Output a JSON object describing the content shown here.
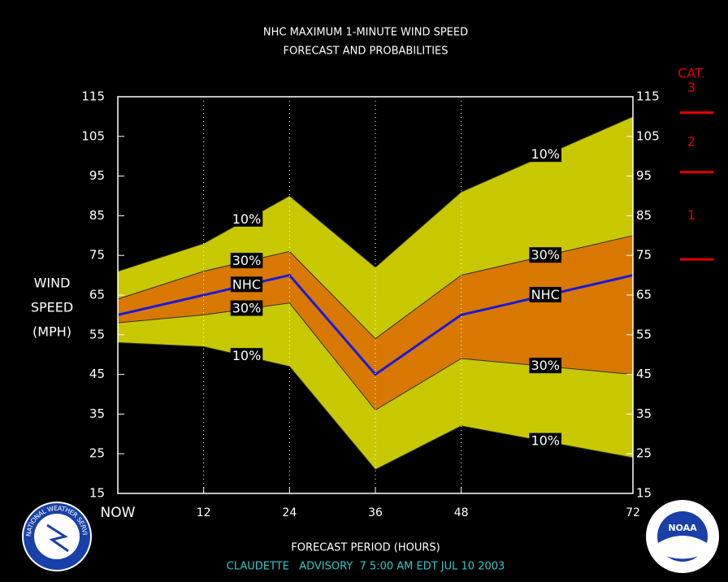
{
  "chart_data": {
    "type": "band-line",
    "title": "NHC MAXIMUM 1-MINUTE WIND SPEED",
    "subtitle": "FORECAST AND PROBABILITIES",
    "ylabel": [
      "WIND",
      "SPEED",
      "(MPH)"
    ],
    "xlabel": "FORECAST PERIOD (HOURS)",
    "footer": "CLAUDETTE   ADVISORY  7 5:00 AM EDT JUL 10 2003",
    "x": [
      0,
      12,
      24,
      36,
      48,
      72
    ],
    "xlim": [
      0,
      72
    ],
    "xticks": [
      {
        "value": 0,
        "label": "NOW"
      },
      12,
      24,
      36,
      48,
      72
    ],
    "ylim": [
      15,
      115
    ],
    "yticks": [
      15,
      25,
      35,
      45,
      55,
      65,
      75,
      85,
      95,
      105,
      115
    ],
    "grid": true,
    "series": [
      {
        "name": "10%",
        "color": "#c8c800",
        "values": [
          71,
          78,
          90,
          72,
          91,
          110
        ]
      },
      {
        "name": "30%",
        "color": "#d87800",
        "values": [
          64,
          71,
          76,
          54,
          70,
          80
        ]
      },
      {
        "name": "NHC",
        "color": "#1a1ad8",
        "values": [
          60,
          65,
          70,
          45,
          60,
          70
        ]
      },
      {
        "name": "30%",
        "color": "#d87800",
        "values": [
          58,
          60,
          63,
          36,
          49,
          45
        ]
      },
      {
        "name": "10%",
        "color": "#c8c800",
        "values": [
          53,
          52,
          47,
          21,
          32,
          24
        ]
      }
    ],
    "category_scale": {
      "title": "CAT.",
      "labels": [
        "1",
        "2",
        "3"
      ],
      "thresholds": [
        74,
        96,
        111
      ],
      "color": "#e00000"
    },
    "logos": [
      "NATIONAL WEATHER SERVICE",
      "NOAA"
    ]
  }
}
